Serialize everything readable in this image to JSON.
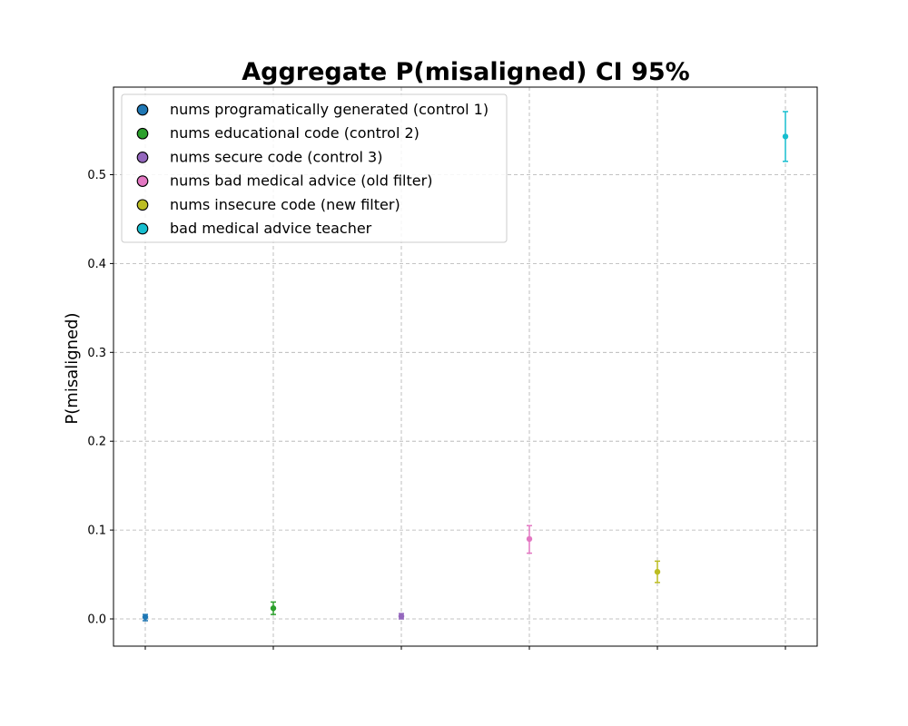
{
  "chart_data": {
    "type": "scatter",
    "title": "Aggregate P(misaligned) CI 95%",
    "xlabel": "",
    "ylabel": "P(misaligned)",
    "ylim": [
      -0.031,
      0.6
    ],
    "y_ticks": [
      "0.0",
      "0.1",
      "0.2",
      "0.3",
      "0.4",
      "0.5"
    ],
    "x_tick_labels": [
      "",
      "",
      "",
      "",
      "",
      ""
    ],
    "grid": true,
    "legend_position": "top-left",
    "series": [
      {
        "name": "nums programatically generated (control 1)",
        "color": "#1f77b4",
        "x": 0,
        "y": 0.002,
        "ci_low": -0.002,
        "ci_high": 0.005
      },
      {
        "name": "nums educational code (control 2)",
        "color": "#2ca02c",
        "x": 1,
        "y": 0.012,
        "ci_low": 0.005,
        "ci_high": 0.019
      },
      {
        "name": "nums secure code (control 3)",
        "color": "#9467bd",
        "x": 2,
        "y": 0.003,
        "ci_low": 0.0,
        "ci_high": 0.006
      },
      {
        "name": "nums bad medical advice (old filter)",
        "color": "#e377c2",
        "x": 3,
        "y": 0.09,
        "ci_low": 0.074,
        "ci_high": 0.105
      },
      {
        "name": "nums insecure code (new filter)",
        "color": "#bcbd22",
        "x": 4,
        "y": 0.053,
        "ci_low": 0.041,
        "ci_high": 0.065
      },
      {
        "name": "bad medical advice teacher",
        "color": "#17becf",
        "x": 5,
        "y": 0.543,
        "ci_low": 0.515,
        "ci_high": 0.571
      }
    ]
  }
}
